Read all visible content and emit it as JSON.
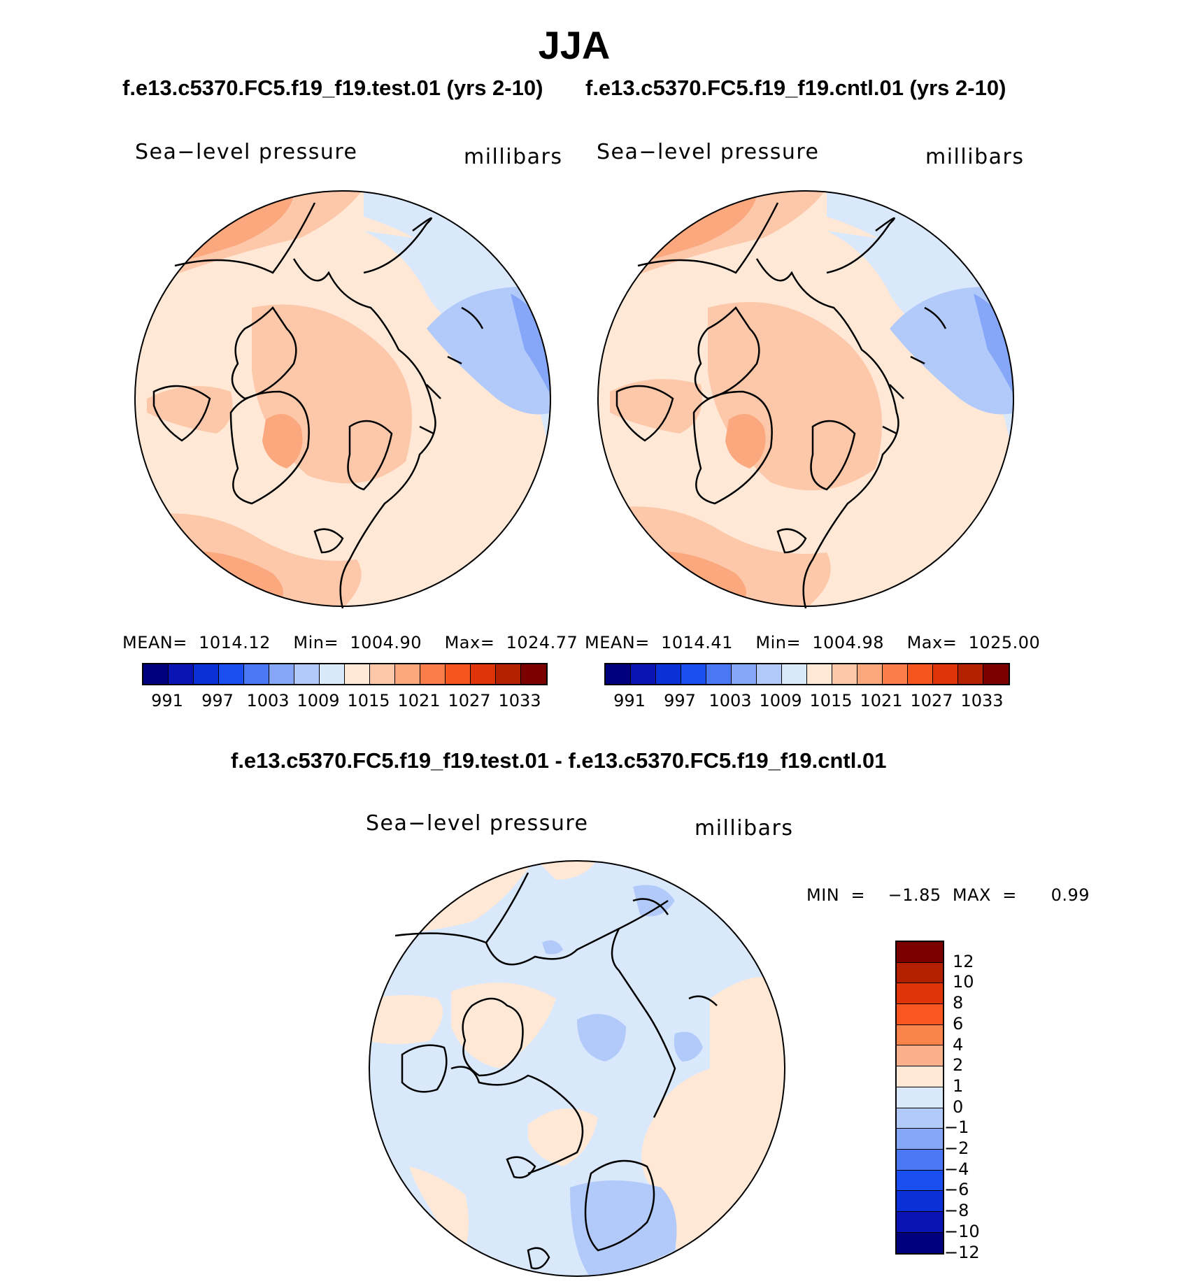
{
  "title": "JJA",
  "panels": [
    {
      "case_title": "f.e13.c5370.FC5.f19_f19.test.01 (yrs 2-10)",
      "left_label": "Sea−level pressure",
      "right_label": "millibars",
      "stats": "MEAN=  1014.12    Min=  1004.90    Max=  1024.77"
    },
    {
      "case_title": "f.e13.c5370.FC5.f19_f19.cntl.01 (yrs 2-10)",
      "left_label": "Sea−level pressure",
      "right_label": "millibars",
      "stats": "MEAN=  1014.41    Min=  1004.98    Max=  1025.00"
    }
  ],
  "abs_colorbar": {
    "colors": [
      "#00007f",
      "#0a14b4",
      "#0a30d8",
      "#1a4ef0",
      "#4a78f4",
      "#86a6f8",
      "#b2cafa",
      "#dae8fc",
      "#ffe8d6",
      "#fdc8aa",
      "#fba87e",
      "#fa7e4a",
      "#f4561e",
      "#de3408",
      "#b22000",
      "#7a0000"
    ],
    "labels": [
      "991",
      "997",
      "1003",
      "1009",
      "1015",
      "1021",
      "1027",
      "1033"
    ]
  },
  "diff": {
    "title": "f.e13.c5370.FC5.f19_f19.test.01 - f.e13.c5370.FC5.f19_f19.cntl.01",
    "left_label": "Sea−level pressure",
    "right_label": "millibars",
    "stats": "MIN  =    −1.85  MAX  =      0.99"
  },
  "diff_colorbar": {
    "colors": [
      "#7a0000",
      "#b22000",
      "#de3408",
      "#fa5622",
      "#fb844c",
      "#fbb08c",
      "#ffe8d6",
      "#dae8fc",
      "#b2cafa",
      "#86a6f8",
      "#4a78f4",
      "#1a4ef0",
      "#0a30d8",
      "#0a14b4",
      "#00007f"
    ],
    "labels": [
      "12",
      "10",
      "8",
      "6",
      "4",
      "2",
      "1",
      "0",
      "−1",
      "−2",
      "−4",
      "−6",
      "−8",
      "−10",
      "−12"
    ]
  }
}
